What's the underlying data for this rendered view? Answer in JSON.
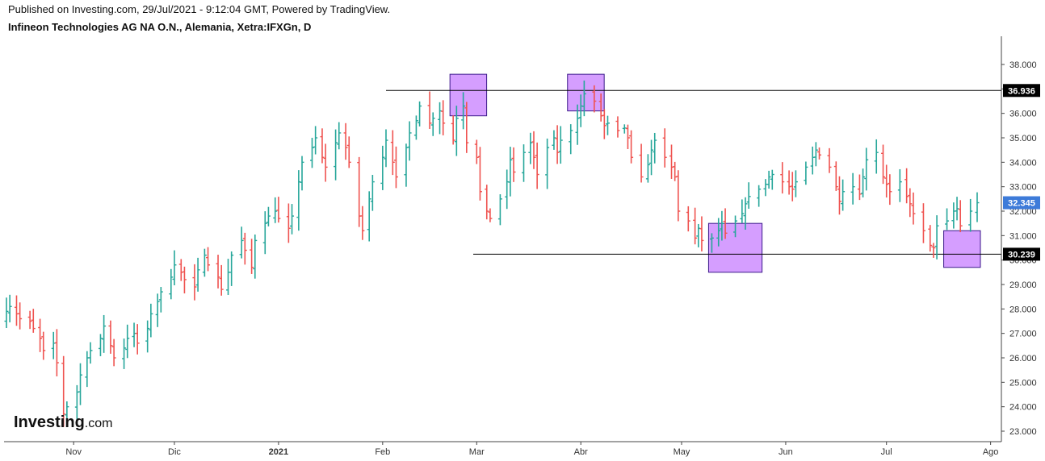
{
  "header": {
    "published": "Published on Investing.com, 29/Jul/2021 - 9:12:04 GMT, Powered by TradingView.",
    "symbol": "Infineon Technologies AG NA O.N., Alemania, Xetra:IFXGn, D"
  },
  "logo": {
    "brand": "Investing",
    "suffix": ".com"
  },
  "colors": {
    "up": "#26a69a",
    "down": "#ef5350",
    "box_fill": "#c77dff",
    "box_stroke": "#3b1a8a",
    "label_bg": "#000000",
    "last_bg": "#3d7bd9"
  },
  "chart_data": {
    "type": "ohlc",
    "ylim": [
      22.6,
      38.6
    ],
    "y_ticks": [
      "23.000",
      "24.000",
      "25.000",
      "26.000",
      "27.000",
      "28.000",
      "29.000",
      "30.000",
      "31.000",
      "32.000",
      "33.000",
      "34.000",
      "35.000",
      "36.000",
      "37.000",
      "38.000"
    ],
    "x_ticks": [
      {
        "label": "Nov",
        "bold": false
      },
      {
        "label": "Dic",
        "bold": false
      },
      {
        "label": "2021",
        "bold": true
      },
      {
        "label": "Feb",
        "bold": false
      },
      {
        "label": "Mar",
        "bold": false
      },
      {
        "label": "Abr",
        "bold": false
      },
      {
        "label": "May",
        "bold": false
      },
      {
        "label": "Jun",
        "bold": false
      },
      {
        "label": "Jul",
        "bold": false
      },
      {
        "label": "Ago",
        "bold": false
      }
    ],
    "horizontal_lines": [
      {
        "value": 36.936,
        "label": "36.936"
      },
      {
        "value": 30.239,
        "label": "30.239"
      }
    ],
    "last_price": {
      "value": 32.345,
      "label": "32.345"
    },
    "highlight_boxes": [
      {
        "from": "2021-02-22",
        "to": "2021-03-03",
        "y_low": 35.9,
        "y_high": 37.6
      },
      {
        "from": "2021-03-29",
        "to": "2021-04-07",
        "y_low": 36.1,
        "y_high": 37.6
      },
      {
        "from": "2021-05-10",
        "to": "2021-05-24",
        "y_low": 29.5,
        "y_high": 31.5
      },
      {
        "from": "2021-07-19",
        "to": "2021-07-28",
        "y_low": 29.7,
        "y_high": 31.2
      }
    ],
    "closes": [
      27.9,
      28.1,
      27.8,
      27.6,
      27.5,
      27.2,
      26.8,
      26.3,
      26.6,
      25.8,
      23.7,
      24.0,
      24.6,
      25.3,
      26.0,
      26.3,
      26.8,
      27.3,
      26.5,
      26.0,
      26.4,
      26.8,
      27.0,
      26.6,
      27.2,
      27.8,
      28.3,
      28.7,
      29.3,
      29.8,
      29.5,
      29.2,
      28.9,
      29.6,
      30.2,
      29.8,
      29.3,
      28.8,
      29.5,
      30.2,
      30.8,
      30.4,
      29.7,
      30.8,
      31.5,
      31.8,
      32.0,
      31.7,
      31.3,
      31.8,
      33.2,
      34.0,
      34.6,
      35.0,
      34.2,
      33.8,
      34.8,
      35.2,
      34.6,
      34.0,
      31.8,
      31.2,
      32.5,
      33.2,
      34.2,
      34.9,
      34.0,
      33.4,
      34.6,
      35.2,
      35.7,
      36.3,
      35.6,
      35.8,
      36.1,
      35.6,
      34.9,
      35.8,
      36.3,
      34.8,
      34.2,
      32.8,
      32.0,
      31.7,
      32.5,
      33.2,
      34.1,
      33.6,
      34.4,
      34.8,
      34.2,
      33.5,
      34.6,
      35.0,
      34.4,
      34.9,
      35.3,
      35.8,
      36.3,
      36.8,
      36.5,
      35.9,
      35.5,
      35.6,
      35.3,
      35.4,
      35.0,
      34.2,
      33.4,
      33.9,
      34.5,
      34.9,
      34.2,
      33.8,
      33.4,
      32.0,
      31.6,
      30.9,
      31.3,
      30.8,
      30.9,
      31.2,
      31.5,
      31.1,
      31.6,
      31.9,
      32.3,
      32.6,
      32.9,
      33.1,
      33.4,
      33.5,
      33.2,
      33.0,
      32.9,
      33.2,
      33.8,
      34.2,
      34.5,
      34.3,
      33.8,
      33.0,
      32.4,
      32.8,
      33.0,
      32.7,
      33.4,
      34.1,
      34.4,
      33.4,
      33.1,
      32.8,
      33.2,
      32.6,
      32.3,
      31.9,
      31.2,
      30.6,
      30.5,
      31.4,
      31.6,
      32.0,
      32.1,
      31.4,
      32.0,
      32.345
    ]
  }
}
